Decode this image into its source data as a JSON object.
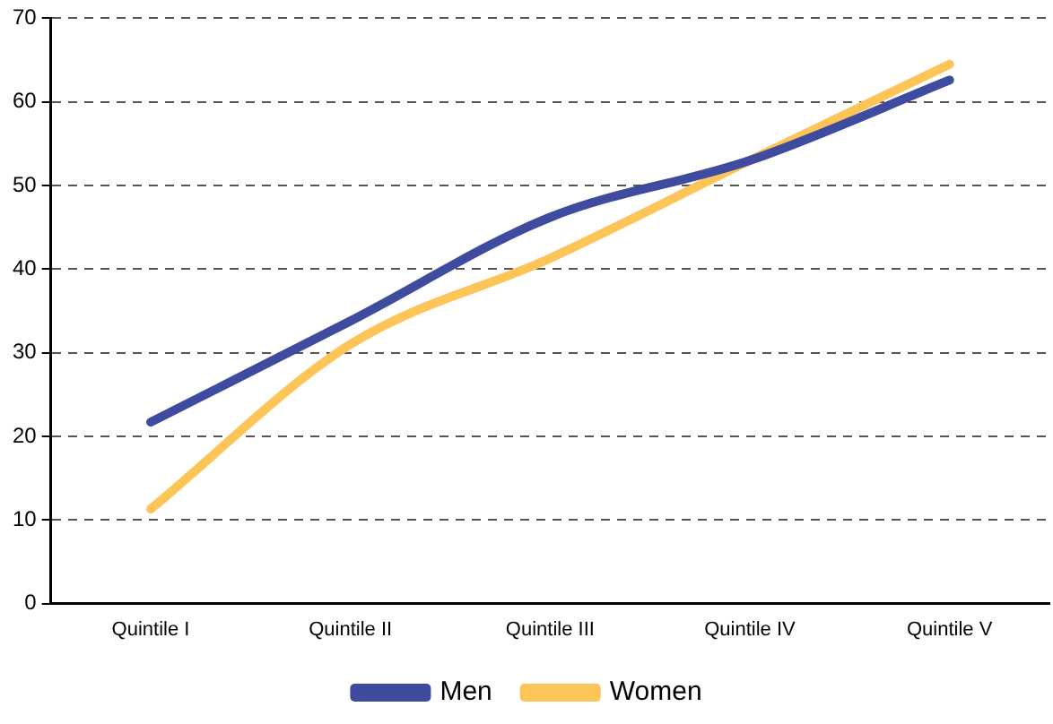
{
  "chart_data": {
    "type": "line",
    "categories": [
      "Quintile I",
      "Quintile II",
      "Quintile III",
      "Quintile IV",
      "Quintile V"
    ],
    "series": [
      {
        "name": "Men",
        "color": "#3f4b9e",
        "values": [
          21.7,
          33.8,
          46.2,
          53,
          62.6
        ]
      },
      {
        "name": "Women",
        "color": "#fdc458",
        "values": [
          11.3,
          31,
          41.3,
          53,
          64.5
        ]
      }
    ],
    "ylim": [
      0,
      70
    ],
    "yticks": [
      0,
      10,
      20,
      30,
      40,
      50,
      60,
      70
    ],
    "grid": "y",
    "legend": "bottom",
    "marker": "none",
    "line_style": "solid"
  }
}
